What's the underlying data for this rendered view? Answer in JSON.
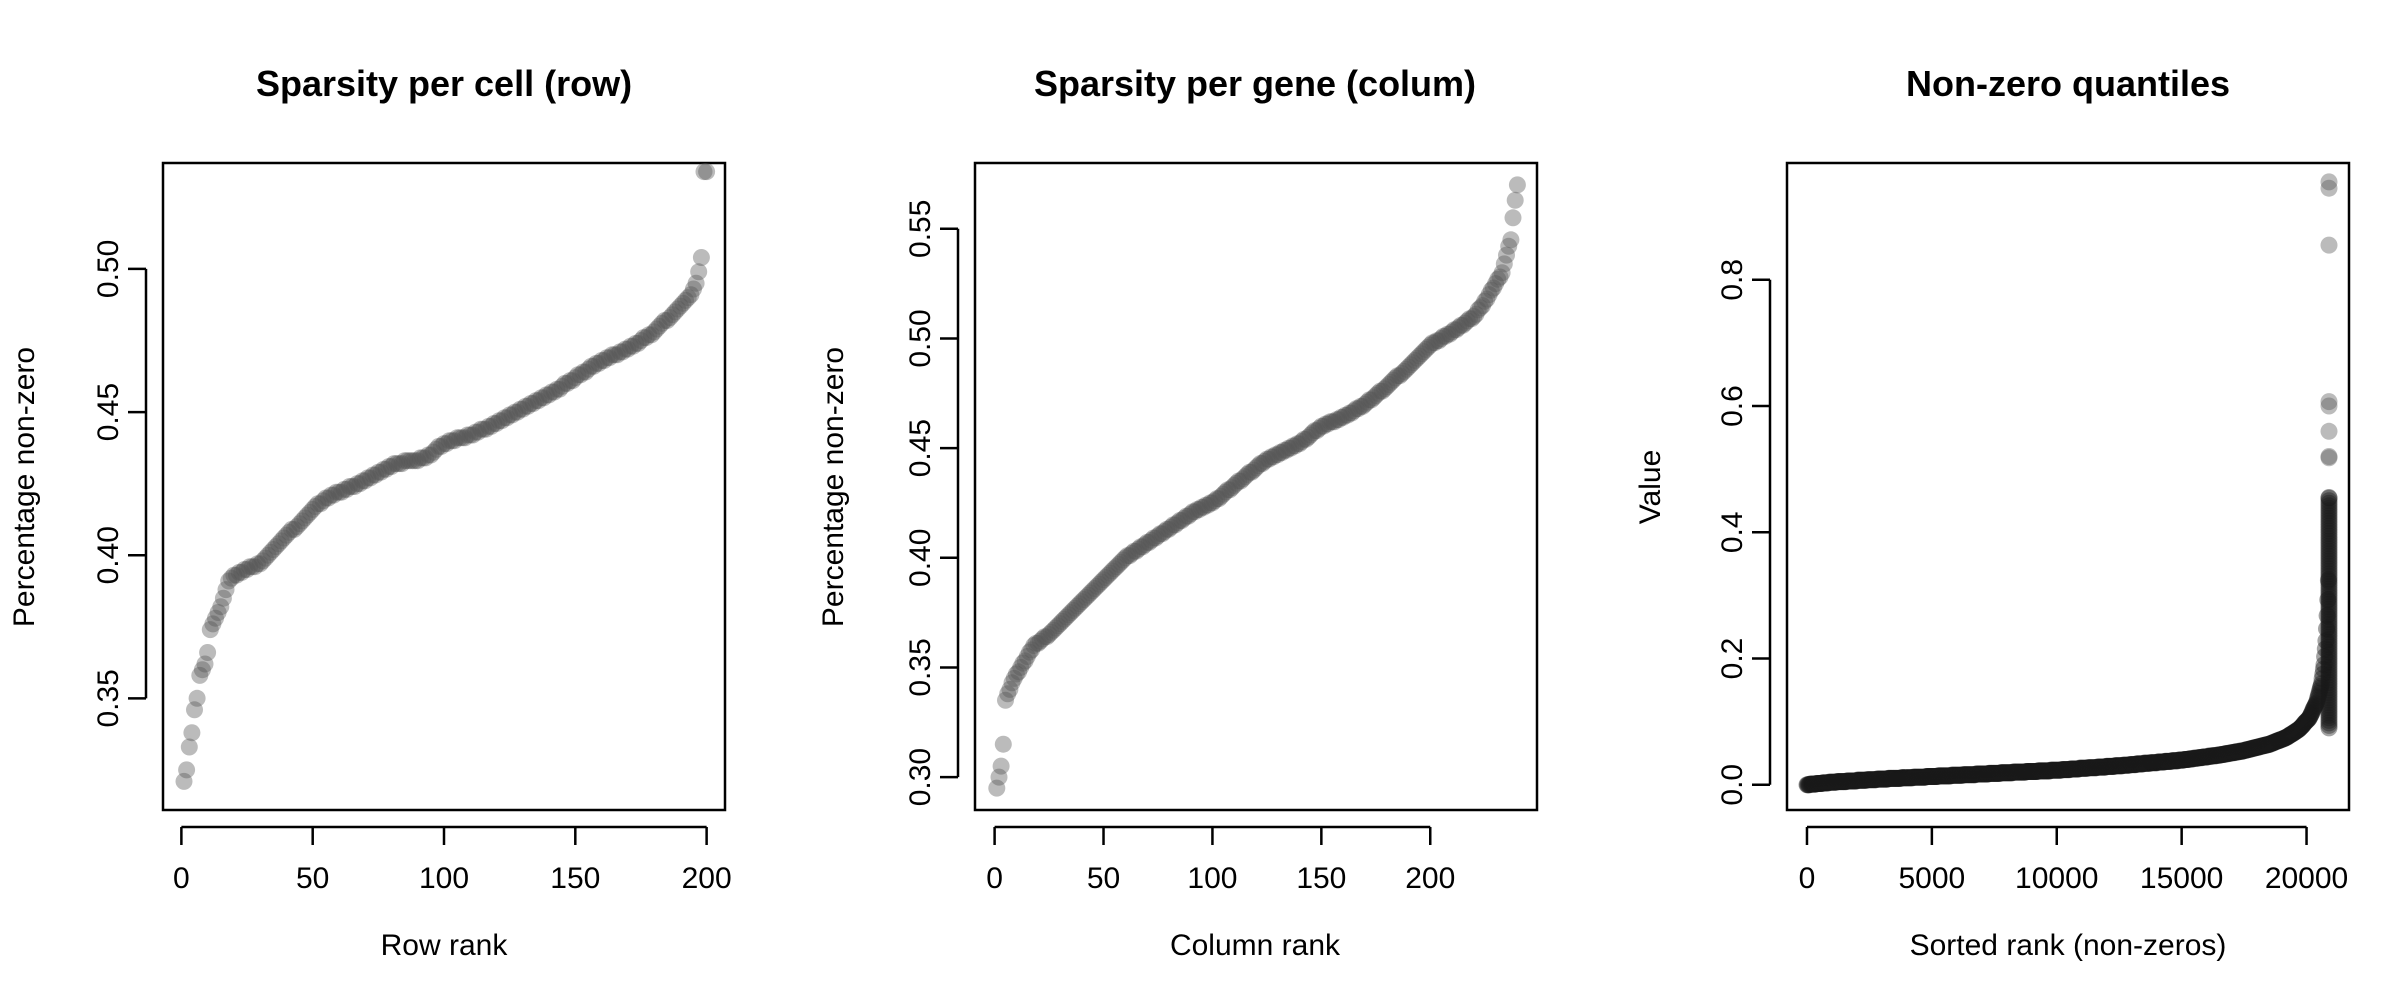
{
  "chart_data": [
    {
      "type": "scatter",
      "title": "Sparsity per cell (row)",
      "xlabel": "Row rank",
      "ylabel": "Percentage non-zero",
      "xlim": [
        -7,
        207
      ],
      "ylim": [
        0.311,
        0.537
      ],
      "xticks": [
        0,
        50,
        100,
        150,
        200
      ],
      "yticks": [
        0.35,
        0.4,
        0.45,
        0.5
      ],
      "ytick_labels": [
        "0.35",
        "0.40",
        "0.45",
        "0.50"
      ],
      "n_points": 200,
      "point_color": "#555555",
      "curve": [
        [
          1,
          0.321
        ],
        [
          2,
          0.325
        ],
        [
          3,
          0.333
        ],
        [
          4,
          0.338
        ],
        [
          5,
          0.346
        ],
        [
          6,
          0.35
        ],
        [
          7,
          0.358
        ],
        [
          9,
          0.362
        ],
        [
          10,
          0.366
        ],
        [
          11,
          0.374
        ],
        [
          13,
          0.378
        ],
        [
          15,
          0.382
        ],
        [
          18,
          0.391
        ],
        [
          22,
          0.394
        ],
        [
          30,
          0.397
        ],
        [
          35,
          0.402
        ],
        [
          40,
          0.407
        ],
        [
          45,
          0.411
        ],
        [
          50,
          0.416
        ],
        [
          55,
          0.42
        ],
        [
          60,
          0.422
        ],
        [
          68,
          0.425
        ],
        [
          75,
          0.429
        ],
        [
          82,
          0.432
        ],
        [
          93,
          0.434
        ],
        [
          100,
          0.439
        ],
        [
          110,
          0.442
        ],
        [
          120,
          0.446
        ],
        [
          130,
          0.451
        ],
        [
          140,
          0.456
        ],
        [
          150,
          0.462
        ],
        [
          160,
          0.468
        ],
        [
          170,
          0.472
        ],
        [
          180,
          0.478
        ],
        [
          188,
          0.485
        ],
        [
          194,
          0.491
        ],
        [
          196,
          0.495
        ],
        [
          197,
          0.499
        ],
        [
          198,
          0.504
        ],
        [
          199,
          0.534
        ]
      ]
    },
    {
      "type": "scatter",
      "title": "Sparsity per gene (colum)",
      "xlabel": "Column rank",
      "ylabel": "Percentage non-zero",
      "xlim": [
        -9,
        249
      ],
      "ylim": [
        0.285,
        0.58
      ],
      "xticks": [
        0,
        50,
        100,
        150,
        200
      ],
      "yticks": [
        0.3,
        0.35,
        0.4,
        0.45,
        0.5,
        0.55
      ],
      "ytick_labels": [
        "0.30",
        "0.35",
        "0.40",
        "0.45",
        "0.50",
        "0.55"
      ],
      "n_points": 240,
      "point_color": "#555555",
      "curve": [
        [
          1,
          0.295
        ],
        [
          3,
          0.305
        ],
        [
          4,
          0.315
        ],
        [
          5,
          0.335
        ],
        [
          7,
          0.34
        ],
        [
          9,
          0.345
        ],
        [
          12,
          0.35
        ],
        [
          15,
          0.355
        ],
        [
          18,
          0.36
        ],
        [
          25,
          0.365
        ],
        [
          30,
          0.37
        ],
        [
          40,
          0.38
        ],
        [
          50,
          0.39
        ],
        [
          60,
          0.4
        ],
        [
          75,
          0.41
        ],
        [
          90,
          0.42
        ],
        [
          100,
          0.425
        ],
        [
          110,
          0.433
        ],
        [
          125,
          0.445
        ],
        [
          140,
          0.452
        ],
        [
          150,
          0.46
        ],
        [
          160,
          0.464
        ],
        [
          170,
          0.47
        ],
        [
          180,
          0.478
        ],
        [
          190,
          0.487
        ],
        [
          200,
          0.497
        ],
        [
          210,
          0.503
        ],
        [
          220,
          0.51
        ],
        [
          226,
          0.518
        ],
        [
          230,
          0.525
        ],
        [
          233,
          0.53
        ],
        [
          235,
          0.538
        ],
        [
          237,
          0.545
        ],
        [
          238,
          0.555
        ],
        [
          239,
          0.563
        ],
        [
          240,
          0.57
        ]
      ]
    },
    {
      "type": "scatter",
      "title": "Non-zero quantiles",
      "xlabel": "Sorted rank (non-zeros)",
      "ylabel": "Value",
      "xlim": [
        -800,
        21700
      ],
      "ylim": [
        -0.04,
        0.985
      ],
      "xticks": [
        0,
        5000,
        10000,
        15000,
        20000
      ],
      "yticks": [
        0.0,
        0.2,
        0.4,
        0.6,
        0.8
      ],
      "ytick_labels": [
        "0.0",
        "0.2",
        "0.4",
        "0.6",
        "0.8"
      ],
      "n_points": 20900,
      "point_color": "#1a1a1a",
      "curve": [
        [
          0,
          0.0
        ],
        [
          1000,
          0.004
        ],
        [
          3000,
          0.009
        ],
        [
          5000,
          0.013
        ],
        [
          7500,
          0.018
        ],
        [
          10000,
          0.023
        ],
        [
          12500,
          0.03
        ],
        [
          15000,
          0.039
        ],
        [
          16500,
          0.047
        ],
        [
          17500,
          0.054
        ],
        [
          18500,
          0.064
        ],
        [
          19200,
          0.075
        ],
        [
          19700,
          0.088
        ],
        [
          20100,
          0.105
        ],
        [
          20400,
          0.13
        ],
        [
          20600,
          0.16
        ],
        [
          20700,
          0.19
        ],
        [
          20780,
          0.23
        ],
        [
          20840,
          0.28
        ],
        [
          20880,
          0.33
        ],
        [
          20890,
          0.36
        ],
        [
          20893,
          0.385
        ],
        [
          20895,
          0.405
        ],
        [
          20897,
          0.425
        ],
        [
          20898,
          0.44
        ],
        [
          20899,
          0.45
        ],
        [
          20900,
          0.455
        ]
      ],
      "outliers": [
        [
          20900,
          0.955
        ],
        [
          20900,
          0.945
        ],
        [
          20900,
          0.855
        ],
        [
          20900,
          0.607
        ],
        [
          20900,
          0.6
        ],
        [
          20900,
          0.56
        ],
        [
          20900,
          0.52
        ],
        [
          20900,
          0.518
        ]
      ]
    }
  ]
}
